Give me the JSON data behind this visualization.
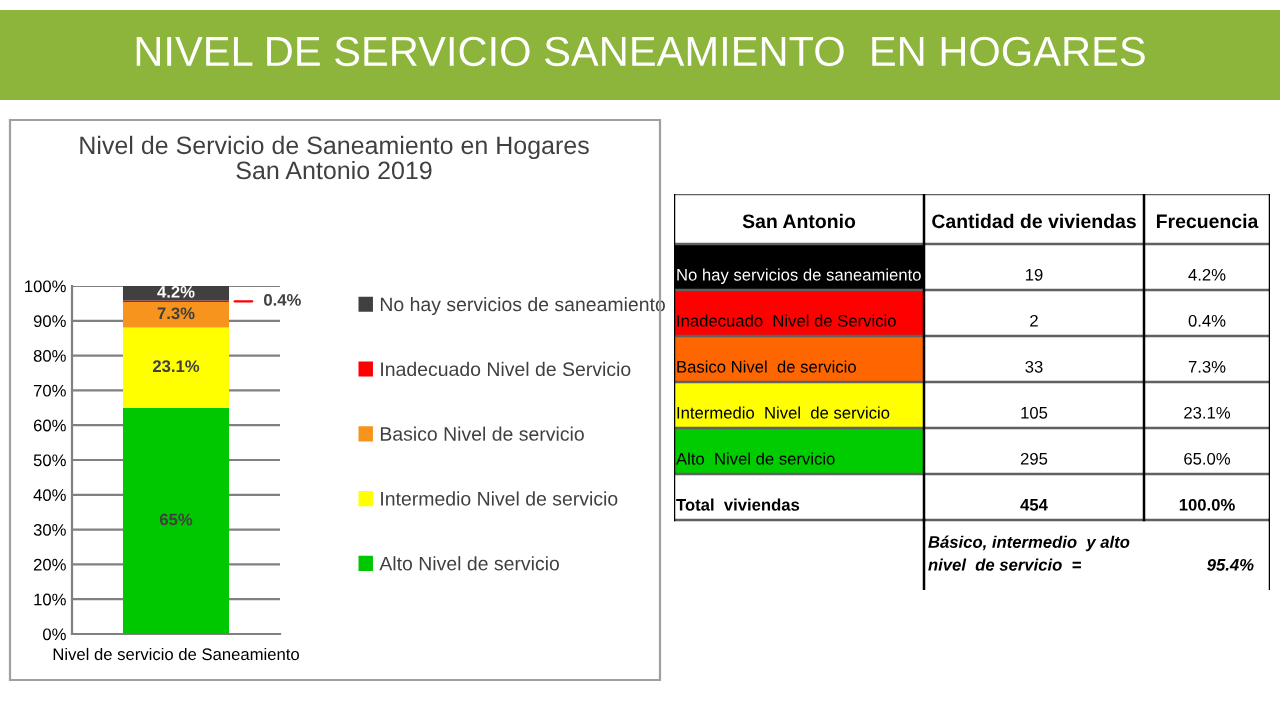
{
  "chart_data": [
    {
      "type": "bar",
      "stacked": true,
      "title": "Nivel de Servicio de Saneamiento en Hogares\nSan Antonio 2019",
      "categories": [
        "Nivel de servicio de Saneamiento"
      ],
      "series": [
        {
          "name": "Alto Nivel de servicio",
          "color": "#00c800",
          "values": [
            65
          ],
          "value_labels": [
            "65%"
          ]
        },
        {
          "name": "Intermedio Nivel de servicio",
          "color": "#ffff00",
          "values": [
            23.1
          ],
          "value_labels": [
            "23.1%"
          ]
        },
        {
          "name": "Basico Nivel de servicio",
          "color": "#f7941d",
          "values": [
            7.3
          ],
          "value_labels": [
            "7.3%"
          ]
        },
        {
          "name": "Inadecuado Nivel de Servicio",
          "color": "#ff0000",
          "values": [
            0.4
          ],
          "value_labels": [
            "0.4%"
          ]
        },
        {
          "name": "No hay servicios de saneamiento",
          "color": "#404040",
          "values": [
            4.2
          ],
          "value_labels": [
            "4.2%"
          ]
        }
      ],
      "ylim": [
        0,
        100
      ],
      "yticks": [
        {
          "value": 0,
          "label": "0%"
        },
        {
          "value": 10,
          "label": "10%"
        },
        {
          "value": 20,
          "label": "20%"
        },
        {
          "value": 30,
          "label": "30%"
        },
        {
          "value": 40,
          "label": "40%"
        },
        {
          "value": 50,
          "label": "50%"
        },
        {
          "value": 60,
          "label": "60%"
        },
        {
          "value": 70,
          "label": "70%"
        },
        {
          "value": 80,
          "label": "80%"
        },
        {
          "value": 90,
          "label": "90%"
        },
        {
          "value": 100,
          "label": "100%"
        }
      ],
      "grid": "y",
      "legend": "right",
      "annotations": [
        "NIVEL DE SERVICIO SANEAMIENTO  EN HOGARES"
      ]
    },
    {
      "type": "other",
      "annotations": [
        "San Antonio",
        "Cantidad de viviendas",
        "Frecuencia",
        "No hay servicios de saneamiento",
        "19",
        "4.2%",
        "Inadecuado  Nivel de Servicio",
        "2",
        "0.4%",
        "Basico Nivel  de servicio",
        "33",
        "7.3%",
        "Intermedio  Nivel  de servicio",
        "105",
        "23.1%",
        "Alto  Nivel de servicio",
        "295",
        "65.0%",
        "Total  viviendas",
        "454",
        "100.0%",
        "Básico, intermedio  y alto\nnivel  de servicio  =",
        "95.4%"
      ],
      "colors": [
        "#000000",
        "#ff0000",
        "#ff6600",
        "#ffff00",
        "#00cc00"
      ]
    }
  ]
}
